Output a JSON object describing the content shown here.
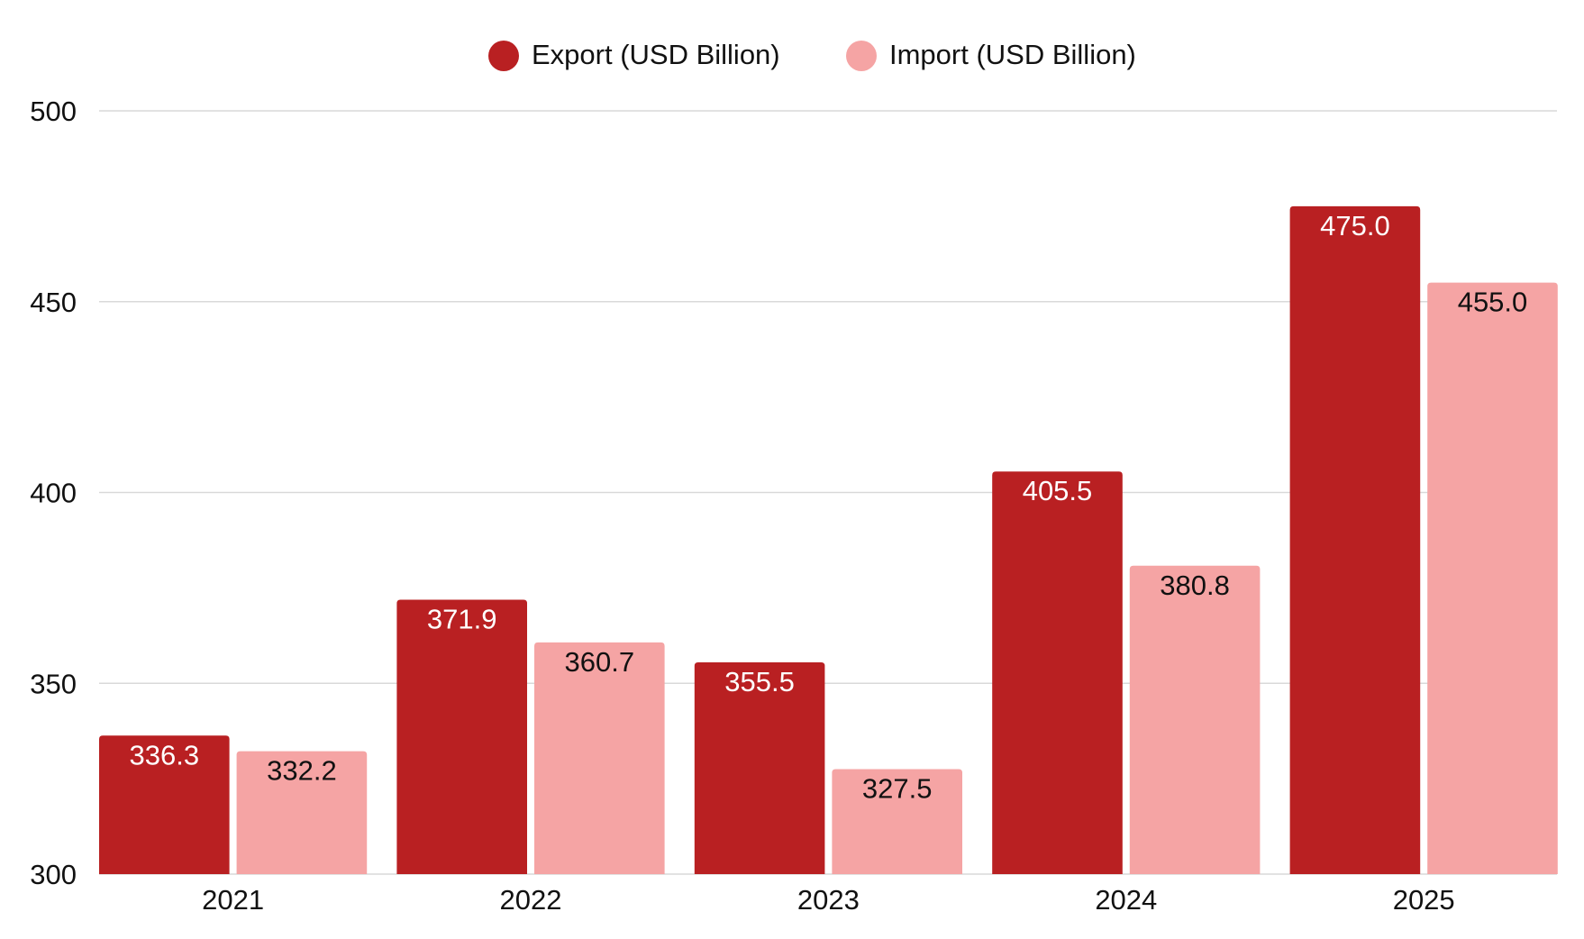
{
  "chart_data": {
    "type": "bar",
    "title": "",
    "xlabel": "",
    "ylabel": "",
    "categories": [
      "2021",
      "2022",
      "2023",
      "2024",
      "2025"
    ],
    "series": [
      {
        "name": "Export (USD Billion)",
        "color": "#b92022",
        "label_color": "#ffffff",
        "values": [
          336.3,
          371.9,
          355.5,
          405.5,
          475.0
        ]
      },
      {
        "name": "Import (USD Billion)",
        "color": "#f5a4a4",
        "label_color": "#111111",
        "values": [
          332.2,
          360.7,
          327.5,
          380.8,
          455.0
        ]
      }
    ],
    "ylim": [
      300,
      500
    ],
    "yticks": [
      300,
      350,
      400,
      450,
      500
    ],
    "grid": true,
    "legend": "top-center"
  }
}
